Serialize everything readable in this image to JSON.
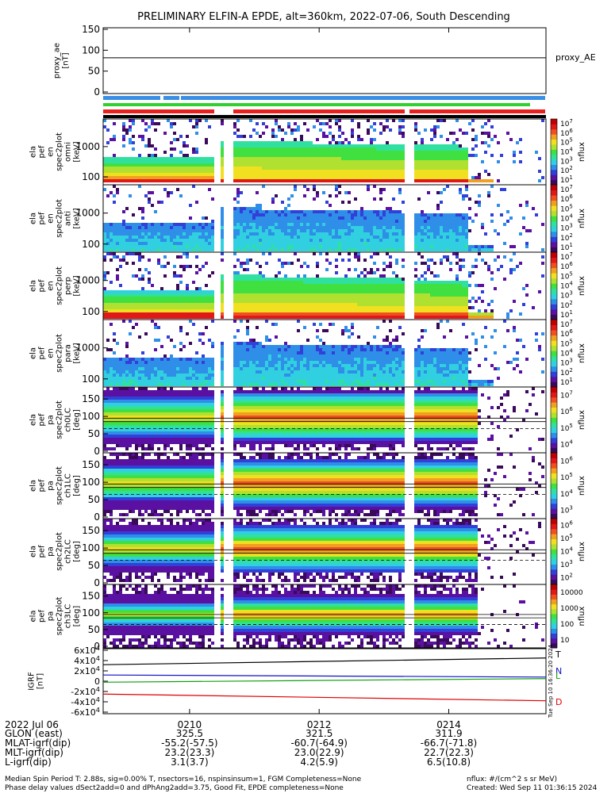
{
  "title": "PRELIMINARY ELFIN-A EPDE, alt=360km, 2022-07-06, South Descending",
  "colors": {
    "bar_blue": "#3a8ee6",
    "bar_red": "#e8211e",
    "bar_green": "#2fd12f",
    "trace_black": "#000000",
    "grf_T": "#000000",
    "grf_N": "#1010c8",
    "grf_L": "#10a010",
    "grf_D": "#e00000",
    "colormap": [
      "#ffffff",
      "#3a0a5a",
      "#5a10a0",
      "#3040d8",
      "#2f8ee8",
      "#31d0e0",
      "#30e0a0",
      "#40e040",
      "#b0e030",
      "#f0e020",
      "#f0a020",
      "#f05020",
      "#e01818",
      "#c00000"
    ]
  },
  "chart_data": [
    {
      "type": "line",
      "panel": "proxy_ae",
      "ylabel_lines": [
        "proxy_ae",
        "[nT]"
      ],
      "yticks": [
        "0",
        "50",
        "100",
        "150"
      ],
      "ylim": [
        0,
        150
      ],
      "series": [
        {
          "name": "proxy_AE",
          "x": [
            "0208:40",
            "0215:30"
          ],
          "values": [
            82,
            82
          ]
        }
      ]
    },
    {
      "type": "heatmap",
      "panel": "ela_pef_en_spec2plot_omni",
      "ylabel_lines": [
        "ela",
        "pef",
        "en",
        "spec2plot",
        "omni",
        "[keV]"
      ],
      "yticks": [
        "100",
        "1000"
      ],
      "colorbar_label": "nflux",
      "colorbar_ticks": [
        "10^1",
        "10^2",
        "10^3",
        "10^4",
        "10^5",
        "10^6",
        "10^7"
      ]
    },
    {
      "type": "heatmap",
      "panel": "ela_pef_en_spec2plot_anti",
      "ylabel_lines": [
        "ela",
        "pef",
        "en",
        "spec2plot",
        "anti",
        "[keV]"
      ],
      "yticks": [
        "100",
        "1000"
      ],
      "colorbar_label": "nflux",
      "colorbar_ticks": [
        "10^1",
        "10^2",
        "10^3",
        "10^4",
        "10^5",
        "10^6",
        "10^7"
      ]
    },
    {
      "type": "heatmap",
      "panel": "ela_pef_en_spec2plot_perp",
      "ylabel_lines": [
        "ela",
        "pef",
        "en",
        "spec2plot",
        "perp",
        "[keV]"
      ],
      "yticks": [
        "100",
        "1000"
      ],
      "colorbar_label": "nflux",
      "colorbar_ticks": [
        "10^1",
        "10^2",
        "10^3",
        "10^4",
        "10^5",
        "10^6",
        "10^7"
      ]
    },
    {
      "type": "heatmap",
      "panel": "ela_pef_en_spec2plot_para",
      "ylabel_lines": [
        "ela",
        "pef",
        "en",
        "spec2plot",
        "para",
        "[keV]"
      ],
      "yticks": [
        "100",
        "1000"
      ],
      "colorbar_label": "nflux",
      "colorbar_ticks": [
        "10^1",
        "10^2",
        "10^3",
        "10^4",
        "10^5",
        "10^6",
        "10^7"
      ]
    },
    {
      "type": "heatmap",
      "panel": "ela_pef_pa_spec2plot_ch0LC",
      "ylabel_lines": [
        "ela",
        "pef",
        "pa",
        "spec2plot",
        "ch0LC",
        "[deg]"
      ],
      "yticks": [
        "0",
        "50",
        "100",
        "150"
      ],
      "ylim": [
        0,
        180
      ],
      "colorbar_label": "nflux",
      "colorbar_ticks": [
        "10^4",
        "10^5",
        "10^6",
        "10^7"
      ]
    },
    {
      "type": "heatmap",
      "panel": "ela_pef_pa_spec2plot_ch1LC",
      "ylabel_lines": [
        "ela",
        "pef",
        "pa",
        "spec2plot",
        "ch1LC",
        "[deg]"
      ],
      "yticks": [
        "0",
        "50",
        "100",
        "150"
      ],
      "ylim": [
        0,
        180
      ],
      "colorbar_label": "nflux",
      "colorbar_ticks": [
        "10^3",
        "10^4",
        "10^5",
        "10^6"
      ]
    },
    {
      "type": "heatmap",
      "panel": "ela_pef_pa_spec2plot_ch2LC",
      "ylabel_lines": [
        "ela",
        "pef",
        "pa",
        "spec2plot",
        "ch2LC",
        "[deg]"
      ],
      "yticks": [
        "0",
        "50",
        "100",
        "150"
      ],
      "ylim": [
        0,
        180
      ],
      "colorbar_label": "nflux",
      "colorbar_ticks": [
        "10^2",
        "10^3",
        "10^4",
        "10^5",
        "10^6"
      ]
    },
    {
      "type": "heatmap",
      "panel": "ela_pef_pa_spec2plot_ch3LC",
      "ylabel_lines": [
        "ela",
        "pef",
        "pa",
        "spec2plot",
        "ch3LC",
        "[deg]"
      ],
      "yticks": [
        "0",
        "50",
        "100",
        "150"
      ],
      "ylim": [
        0,
        180
      ],
      "colorbar_label": "nflux",
      "colorbar_ticks": [
        "10",
        "100",
        "1000",
        "10000"
      ]
    },
    {
      "type": "line",
      "panel": "IGRF",
      "ylabel_lines": [
        "IGRF",
        "[nT]"
      ],
      "yticks": [
        "-6x10^4",
        "-4x10^4",
        "-2x10^4",
        "0",
        "2x10^4",
        "4x10^4",
        "6x10^4"
      ],
      "ylim": [
        -60000,
        60000
      ],
      "series": [
        {
          "name": "T",
          "x": [
            "0208:40",
            "0215:30"
          ],
          "values": [
            32000,
            45000
          ]
        },
        {
          "name": "N",
          "x": [
            "0208:40",
            "0215:30"
          ],
          "values": [
            12000,
            8000
          ]
        },
        {
          "name": "L",
          "x": [
            "0208:40",
            "0215:30"
          ],
          "values": [
            -2000,
            5000
          ]
        },
        {
          "name": "D",
          "x": [
            "0208:40",
            "0215:30"
          ],
          "values": [
            -25000,
            -38000
          ]
        }
      ]
    }
  ],
  "bottom_axis": {
    "row_labels": [
      "2022 Jul 06",
      "GLON (east)",
      "MLAT-igrf(dip)",
      "MLT-igrf(dip)",
      "L-igrf(dip)"
    ],
    "ticks": [
      {
        "time": "0210",
        "rows": [
          "325.5",
          "-55.2(-57.5)",
          "23.2(23.3)",
          "3.1(3.7)"
        ]
      },
      {
        "time": "0212",
        "rows": [
          "321.5",
          "-60.7(-64.9)",
          "23.0(22.9)",
          "4.2(5.9)"
        ]
      },
      {
        "time": "0214",
        "rows": [
          "311.9",
          "-66.7(-71.8)",
          "22.7(22.3)",
          "6.5(10.8)"
        ]
      }
    ]
  },
  "side_timestamp": "Tue Sep 10 16:36:20 2024",
  "footer": {
    "line1": "Median Spin Period T: 2.88s, sig=0.00% T, nsectors=16, nspinsinsum=1, FGM Completeness=None",
    "line2": "Phase delay values dSect2add=0 and dPhAng2add=3.75, Good Fit, EPDE completeness=None",
    "units": "nflux: #/(cm^2 s sr MeV)",
    "created": "Created: Wed Sep 11 01:36:15 2024"
  }
}
